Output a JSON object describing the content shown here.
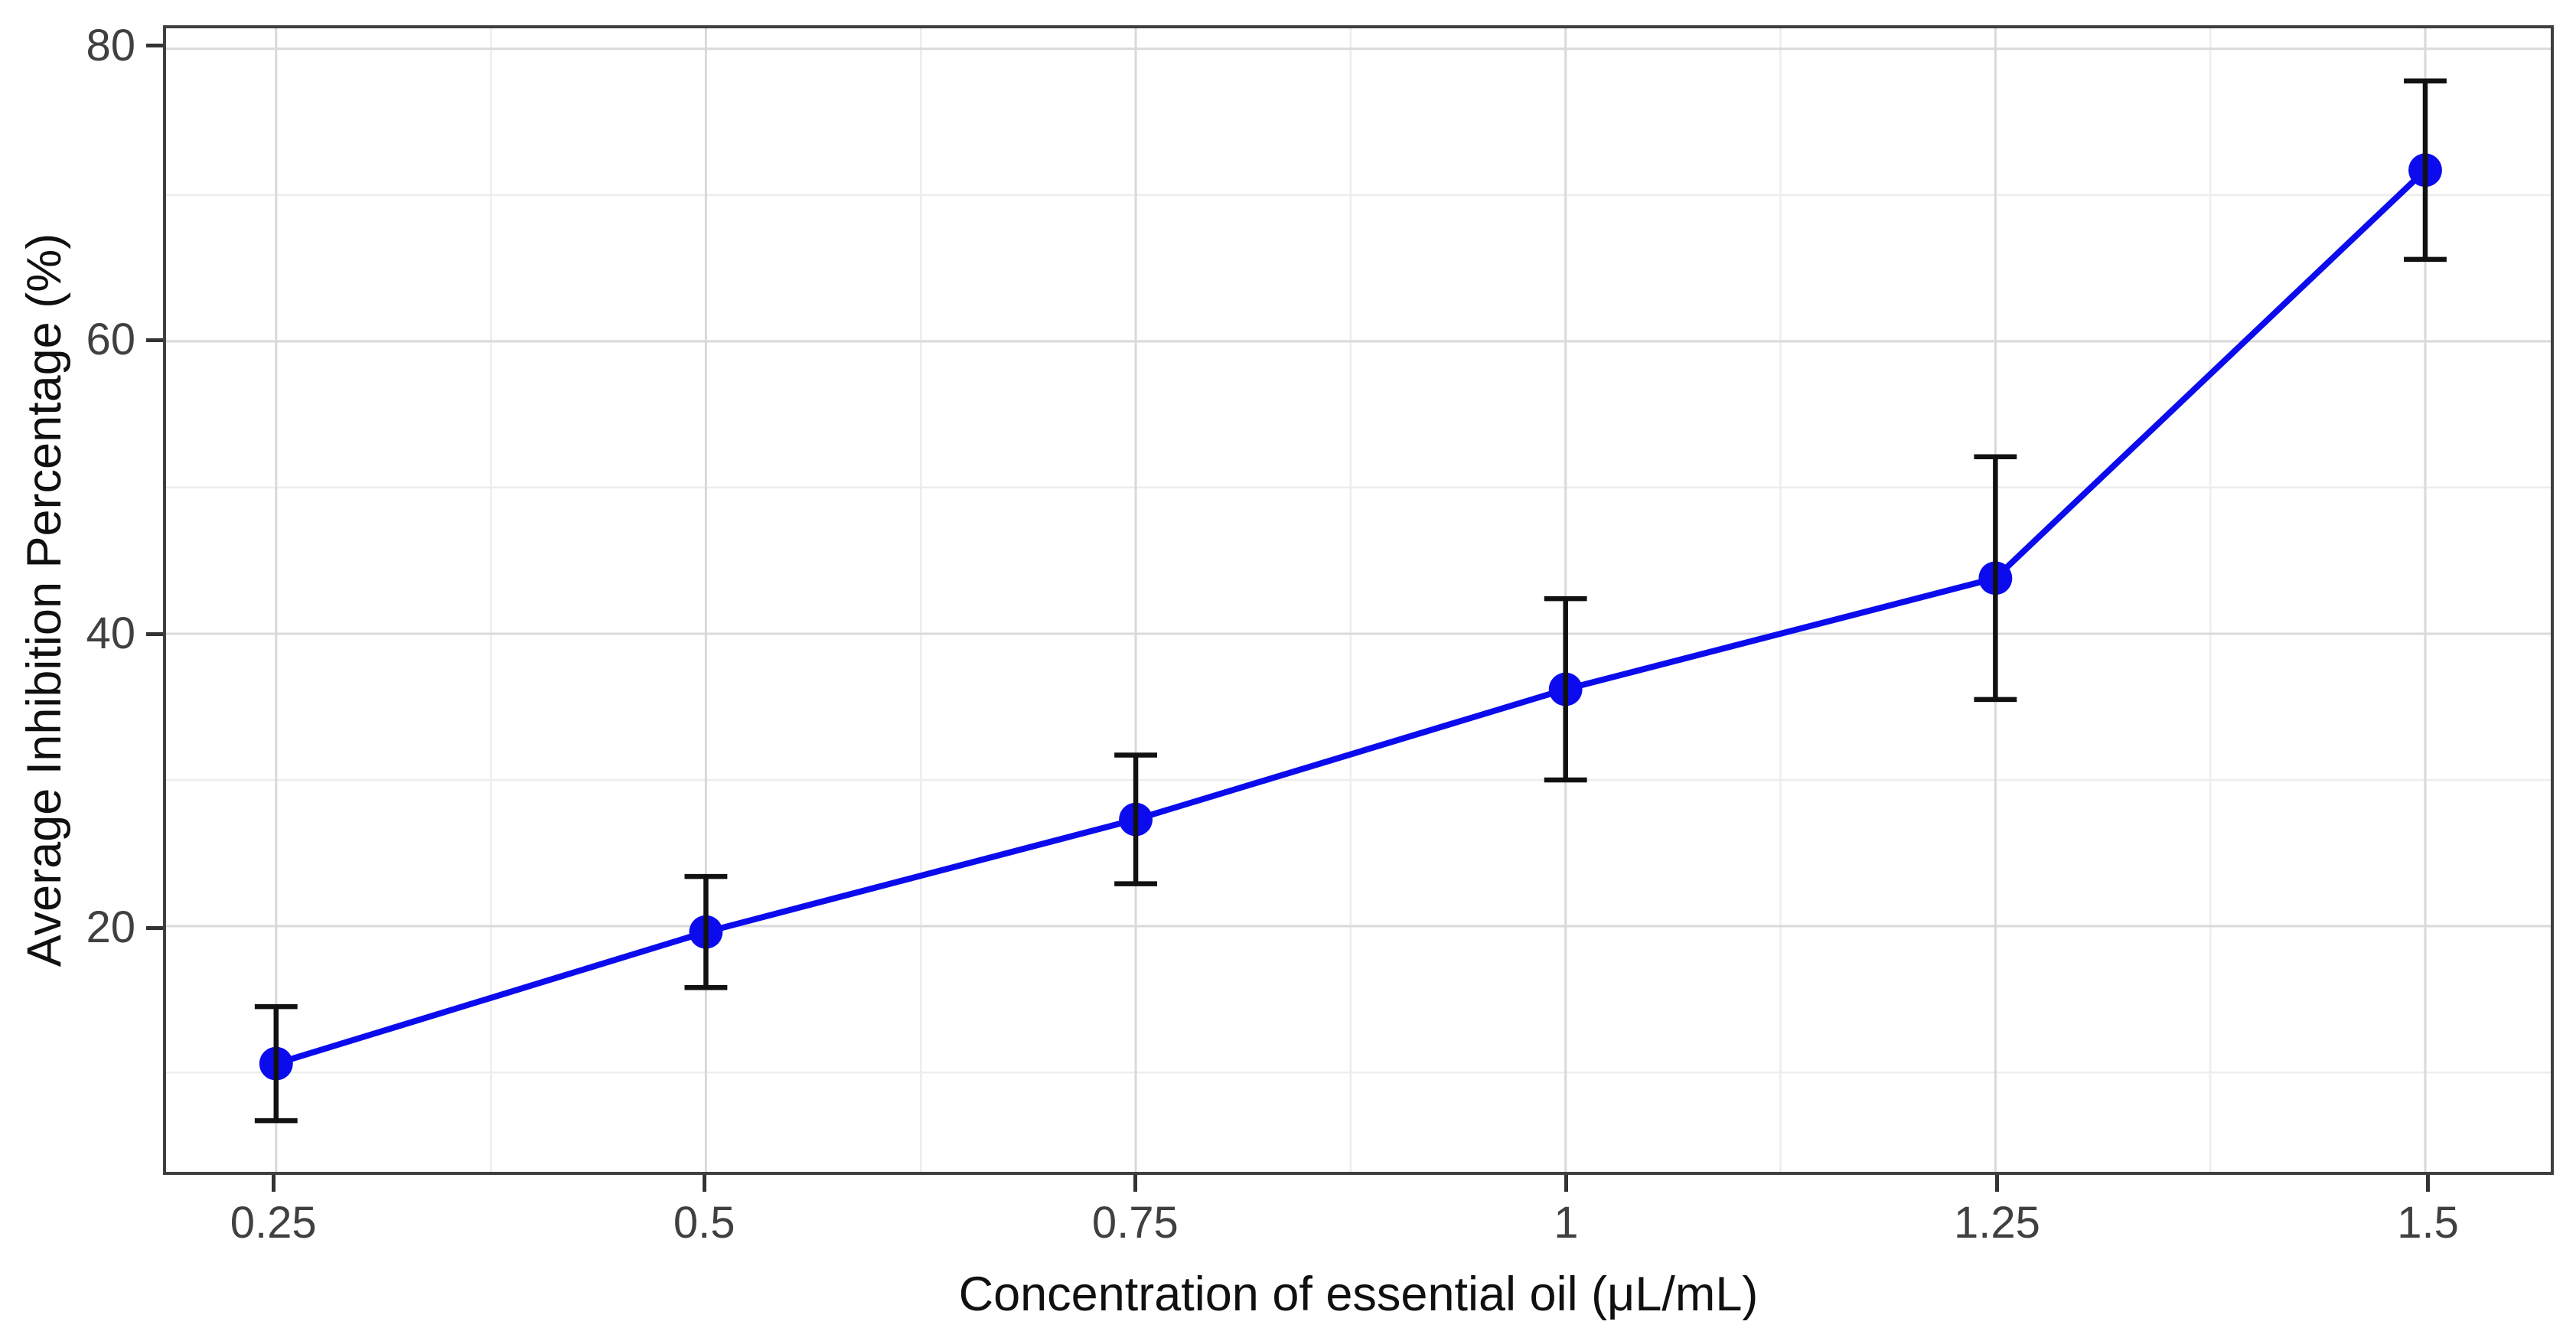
{
  "chart_data": {
    "type": "line",
    "title": "",
    "xlabel": "Concentration of essential oil (μL/mL)",
    "ylabel": "Average Inhibition Percentage (%)",
    "x": [
      0.25,
      0.5,
      0.75,
      1,
      1.25,
      1.5
    ],
    "x_tick_labels": [
      "0.25",
      "0.5",
      "0.75",
      "1",
      "1.25",
      "1.5"
    ],
    "y": [
      10.6,
      19.6,
      27.3,
      36.2,
      43.8,
      71.7
    ],
    "y_err": [
      3.9,
      3.8,
      4.4,
      6.2,
      8.3,
      6.1
    ],
    "y_ticks": [
      20,
      40,
      60,
      80
    ],
    "y_tick_labels": [
      "20",
      "40",
      "60",
      "80"
    ],
    "y_minor_ticks": [
      10,
      30,
      50,
      70
    ],
    "x_minor_ticks": [
      0.375,
      0.625,
      0.875,
      1.125,
      1.375
    ],
    "xlim": [
      0.186,
      1.573
    ],
    "ylim": [
      3.2,
      81.4
    ],
    "grid": "major+minor",
    "legend": "none",
    "colors": {
      "line": "#0b0bee",
      "point": "#0b0bee",
      "error_bar": "#111111",
      "grid_major": "#d9d9d9",
      "grid_minor": "#ededed",
      "panel_border": "#3f3f3f",
      "tick": "#333333",
      "tick_label": "#404040",
      "axis_title": "#101010",
      "background": "#ffffff"
    }
  }
}
